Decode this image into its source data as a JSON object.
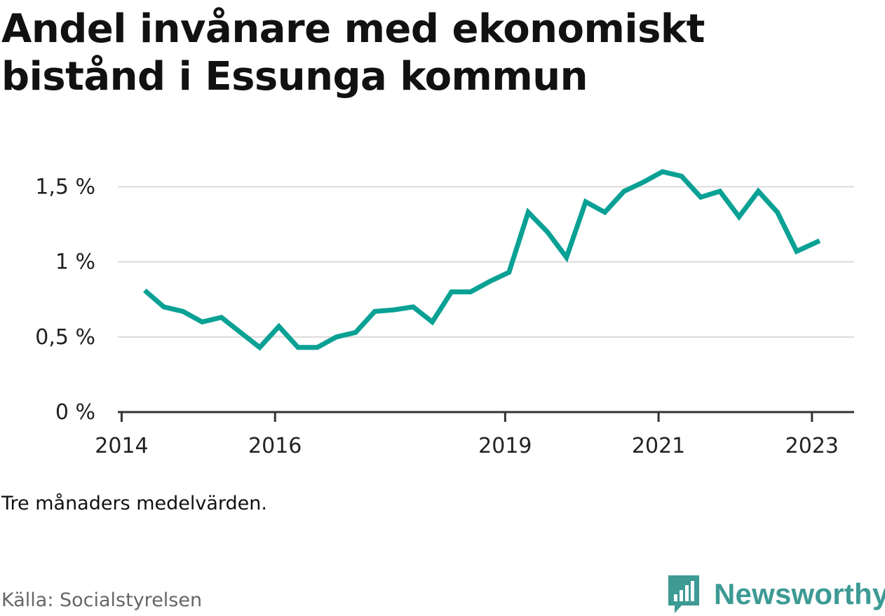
{
  "title": "Andel invånare med ekonomiskt bistånd i Essunga kommun",
  "note": "Tre månaders medelvärden.",
  "source": "Källa: Socialstyrelsen",
  "brand": {
    "name": "Newsworthy",
    "icon": "newsworthy-logo-icon",
    "color": "#3d9a94"
  },
  "chart_data": {
    "type": "line",
    "title": "Andel invånare med ekonomiskt bistånd i Essunga kommun",
    "xlabel": "",
    "ylabel": "",
    "xlim": [
      2013.95,
      2023.55
    ],
    "ylim": [
      0,
      1.6
    ],
    "grid": true,
    "line_color": "#0aa195",
    "y_ticks": [
      {
        "value": 0,
        "label": "0 %"
      },
      {
        "value": 0.5,
        "label": "0,5 %"
      },
      {
        "value": 1,
        "label": "1 %"
      },
      {
        "value": 1.5,
        "label": "1,5 %"
      }
    ],
    "x_ticks": [
      {
        "value": 2014,
        "label": "2014"
      },
      {
        "value": 2016,
        "label": "2016"
      },
      {
        "value": 2019,
        "label": "2019"
      },
      {
        "value": 2021,
        "label": "2021"
      },
      {
        "value": 2023,
        "label": "2023"
      }
    ],
    "series": [
      {
        "x": [
          2014.3,
          2014.55,
          2014.8,
          2015.05,
          2015.3,
          2015.55,
          2015.8,
          2016.05,
          2016.3,
          2016.55,
          2016.8,
          2017.05,
          2017.3,
          2017.55,
          2017.8,
          2018.05,
          2018.3,
          2018.55,
          2018.8,
          2019.05,
          2019.3,
          2019.55,
          2019.8,
          2020.05,
          2020.3,
          2020.55,
          2020.8,
          2021.05,
          2021.3,
          2021.55,
          2021.8,
          2022.05,
          2022.3,
          2022.55,
          2022.8,
          2023.1
        ],
        "values": [
          0.81,
          0.7,
          0.67,
          0.6,
          0.63,
          0.53,
          0.43,
          0.57,
          0.43,
          0.43,
          0.5,
          0.53,
          0.67,
          0.68,
          0.7,
          0.6,
          0.8,
          0.8,
          0.87,
          0.93,
          1.33,
          1.2,
          1.03,
          1.4,
          1.33,
          1.47,
          1.53,
          1.6,
          1.57,
          1.43,
          1.47,
          1.3,
          1.47,
          1.33,
          1.07,
          1.14
        ]
      }
    ]
  }
}
